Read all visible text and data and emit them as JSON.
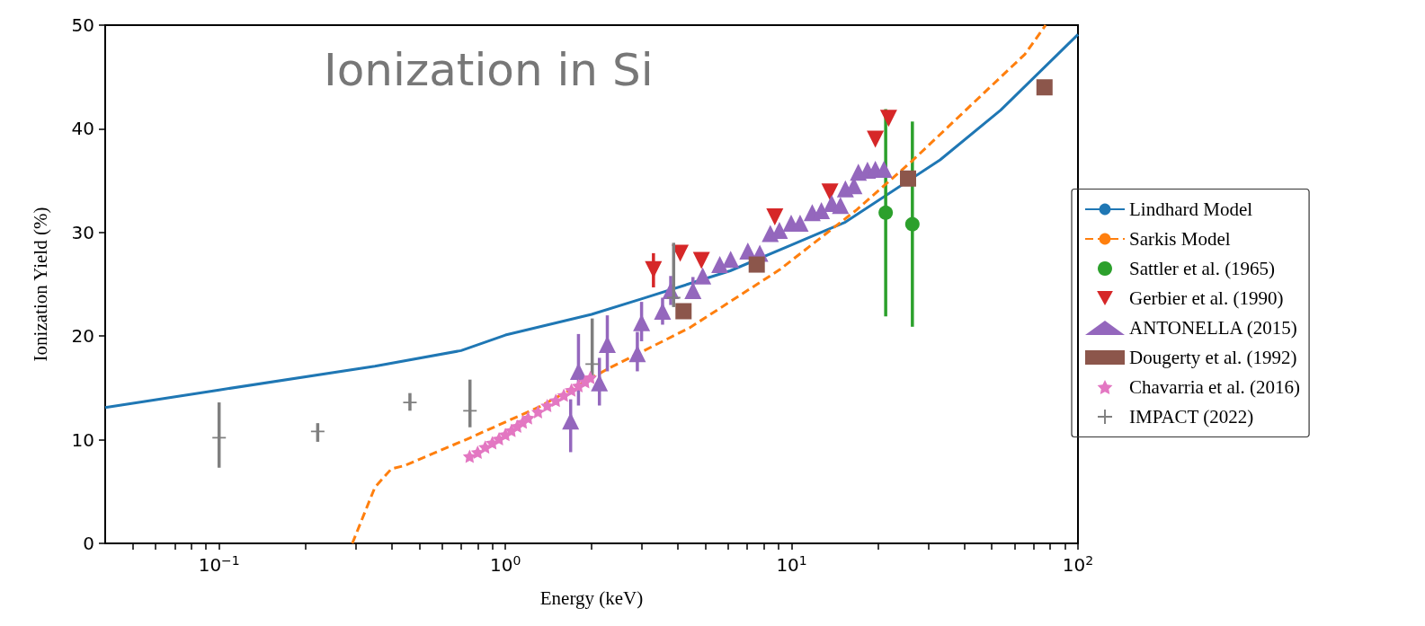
{
  "chart_data": {
    "type": "scatter",
    "title": "Ionization in Si",
    "xlabel": "Energy (keV)",
    "ylabel": "Ionization Yield (%)",
    "log": "x",
    "grid": false,
    "legend": "right",
    "xlim": [
      0.04,
      100
    ],
    "ylim": [
      0,
      50
    ],
    "xticks": [
      {
        "value": 0.05,
        "label": null
      },
      {
        "value": 0.06,
        "label": null
      },
      {
        "value": 0.07,
        "label": null
      },
      {
        "value": 0.08,
        "label": null
      },
      {
        "value": 0.09,
        "label": null
      },
      {
        "value": 0.1,
        "label": "10$^{−1}$"
      },
      {
        "value": 0.2,
        "label": null
      },
      {
        "value": 0.3,
        "label": null
      },
      {
        "value": 0.4,
        "label": null
      },
      {
        "value": 0.5,
        "label": null
      },
      {
        "value": 0.6,
        "label": null
      },
      {
        "value": 0.7,
        "label": null
      },
      {
        "value": 0.8,
        "label": null
      },
      {
        "value": 0.9,
        "label": null
      },
      {
        "value": 1,
        "label": "10$^{0}$"
      },
      {
        "value": 2,
        "label": null
      },
      {
        "value": 3,
        "label": null
      },
      {
        "value": 4,
        "label": null
      },
      {
        "value": 5,
        "label": null
      },
      {
        "value": 6,
        "label": null
      },
      {
        "value": 7,
        "label": null
      },
      {
        "value": 8,
        "label": null
      },
      {
        "value": 9,
        "label": null
      },
      {
        "value": 10,
        "label": "10$^{1}$"
      },
      {
        "value": 20,
        "label": null
      },
      {
        "value": 30,
        "label": null
      },
      {
        "value": 40,
        "label": null
      },
      {
        "value": 50,
        "label": null
      },
      {
        "value": 60,
        "label": null
      },
      {
        "value": 70,
        "label": null
      },
      {
        "value": 80,
        "label": null
      },
      {
        "value": 90,
        "label": null
      },
      {
        "value": 100,
        "label": "10$^{2}$"
      }
    ],
    "yticks": [
      0,
      10,
      20,
      30,
      40,
      50
    ],
    "series": [
      {
        "name": "Lindhard Model",
        "type": "line",
        "line_style": "solid",
        "marker": "none",
        "color": "#1f77b4",
        "x": [
          0.04,
          0.1,
          0.35,
          0.7,
          1,
          2,
          3,
          6.1,
          10,
          15.4,
          33,
          53.7,
          100
        ],
        "values": [
          13.1,
          14.8,
          17.1,
          18.6,
          20.1,
          22.1,
          23.6,
          26.3,
          28.8,
          31.0,
          37.0,
          41.8,
          49.1
        ]
      },
      {
        "name": "Sarkis Model",
        "type": "line",
        "line_style": "dashed",
        "marker": "none",
        "color": "#ff7f0e",
        "x": [
          0.292,
          0.35,
          0.4,
          0.445,
          0.755,
          1.32,
          2.3,
          4.4,
          9.07,
          16.9,
          26.1,
          65.3,
          77.1
        ],
        "values": [
          0,
          5.4,
          7.2,
          7.5,
          10.2,
          13.2,
          16.9,
          20.8,
          26.4,
          32.2,
          36.8,
          47.2,
          50
        ]
      },
      {
        "name": "Sattler et al. (1965)",
        "marker": "circle",
        "color": "#2ca02c",
        "x": [
          21.3,
          26.4
        ],
        "values": [
          31.9,
          30.8
        ],
        "errors": [
          [
            21.9,
            41.9
          ],
          [
            20.9,
            40.7
          ]
        ]
      },
      {
        "name": "Gerbier et al. (1990)",
        "marker": "triangle-down",
        "color": "#d62728",
        "x": [
          3.29,
          4.08,
          4.84,
          8.73,
          13.6,
          19.6,
          21.8
        ],
        "values": [
          26.4,
          28.0,
          27.3,
          31.5,
          33.9,
          39.0,
          41.0
        ],
        "errors": [
          [
            24.7,
            28.0
          ],
          null,
          null,
          null,
          null,
          null,
          null
        ]
      },
      {
        "name": "ANTONELLA (2015)",
        "marker": "triangle",
        "color": "#9467bd",
        "x": [
          1.69,
          1.8,
          2.13,
          2.27,
          2.89,
          2.99,
          3.54,
          3.78,
          4.52,
          4.89,
          5.61,
          6.12,
          7.03,
          7.74,
          8.42,
          9.06,
          9.96,
          10.7,
          11.8,
          12.7,
          13.8,
          14.8,
          15.4,
          16.5,
          17.1,
          18.4,
          19.6,
          21.0
        ],
        "values": [
          11.8,
          16.6,
          15.5,
          19.2,
          18.3,
          21.3,
          22.4,
          24.4,
          24.4,
          25.8,
          26.9,
          27.4,
          28.2,
          28.0,
          29.9,
          30.2,
          30.9,
          30.9,
          31.9,
          32.1,
          32.8,
          32.6,
          34.2,
          34.5,
          35.8,
          36.0,
          36.1,
          36.1
        ],
        "errors": [
          [
            8.8,
            13.9
          ],
          [
            13.3,
            20.2
          ],
          [
            13.3,
            17.9
          ],
          [
            16.6,
            22.0
          ],
          [
            16.6,
            20.4
          ],
          [
            19.5,
            23.3
          ],
          [
            21.1,
            23.7
          ],
          [
            23.0,
            25.8
          ],
          [
            23.6,
            25.7
          ],
          null,
          null,
          null,
          null,
          null,
          null,
          null,
          null,
          null,
          null,
          null,
          null,
          null,
          null,
          null,
          null,
          null,
          null,
          null
        ]
      },
      {
        "name": "Dougerty et al. (1992)",
        "marker": "square",
        "color": "#8c564b",
        "x": [
          4.19,
          7.55,
          25.5,
          76.4
        ],
        "values": [
          22.4,
          26.9,
          35.2,
          44.0
        ]
      },
      {
        "name": "Chavarria et al. (2016)",
        "marker": "star",
        "color": "#e377c2",
        "x": [
          0.75,
          0.8,
          0.85,
          0.9,
          0.95,
          1.0,
          1.05,
          1.1,
          1.15,
          1.2,
          1.3,
          1.4,
          1.5,
          1.6,
          1.7,
          1.8,
          1.9,
          1.98
        ],
        "values": [
          8.4,
          8.8,
          9.3,
          9.7,
          10.1,
          10.5,
          10.9,
          11.3,
          11.7,
          12.1,
          12.7,
          13.3,
          13.8,
          14.3,
          14.8,
          15.2,
          15.6,
          16.0
        ]
      },
      {
        "name": "IMPACT (2022)",
        "marker": "cross",
        "color": "#7f7f7f",
        "x": [
          0.1,
          0.221,
          0.464,
          0.752,
          2.01,
          3.87
        ],
        "values": [
          10.2,
          10.8,
          13.6,
          12.8,
          17.3,
          23.7
        ],
        "errors": [
          [
            7.3,
            13.6
          ],
          [
            9.8,
            11.6
          ],
          [
            12.8,
            14.5
          ],
          [
            11.2,
            15.8
          ],
          [
            16.0,
            21.7
          ],
          [
            22.8,
            29.0
          ]
        ]
      }
    ]
  }
}
